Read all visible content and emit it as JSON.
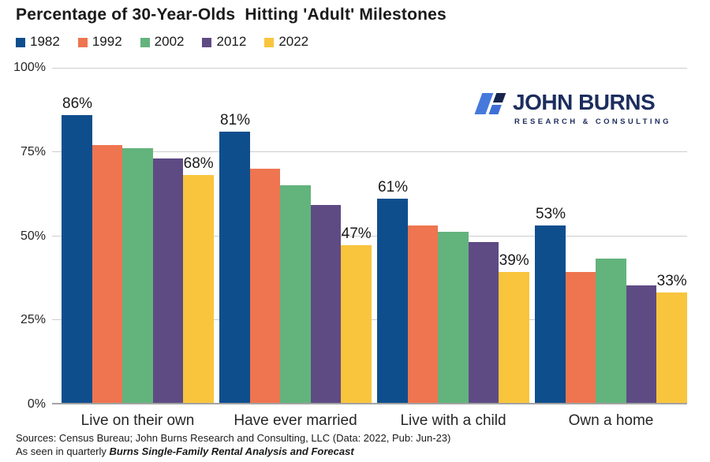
{
  "title": "Percentage of 30-Year-Olds  Hitting 'Adult' Milestones",
  "logo": {
    "name": "JOHN BURNS",
    "tagline": "RESEARCH & CONSULTING"
  },
  "chart_data": {
    "type": "bar",
    "title": "Percentage of 30-Year-Olds Hitting 'Adult' Milestones",
    "categories": [
      "Live on their own",
      "Have ever married",
      "Live with a child",
      "Own a home"
    ],
    "series": [
      {
        "name": "1982",
        "color": "#0f4e8d",
        "values": [
          86,
          81,
          61,
          53
        ],
        "labeled": true,
        "label_align": "left"
      },
      {
        "name": "1992",
        "color": "#ee7550",
        "values": [
          77,
          70,
          53,
          39
        ],
        "labeled": false
      },
      {
        "name": "2002",
        "color": "#63b37d",
        "values": [
          76,
          65,
          51,
          43
        ],
        "labeled": false
      },
      {
        "name": "2012",
        "color": "#5e4b84",
        "values": [
          73,
          59,
          48,
          35
        ],
        "labeled": false
      },
      {
        "name": "2022",
        "color": "#f8c53d",
        "values": [
          68,
          47,
          39,
          33
        ],
        "labeled": true,
        "label_align": "center"
      }
    ],
    "ylim": [
      0,
      100
    ],
    "y_ticks": [
      "100%",
      "75%",
      "50%",
      "25%",
      "0%"
    ],
    "grid": "horizontal",
    "legend_position": "top-left",
    "data_label_format": "{value}%",
    "gridline_color": "#cdcdcd",
    "baseline_color": "#a3a3a3"
  },
  "footer": {
    "line1": "Sources: Census Bureau; John Burns Research and Consulting, LLC (Data: 2022, Pub: Jun-23)",
    "line2_prefix": "As seen in quarterly ",
    "line2_emphasis": "Burns Single-Family Rental Analysis and Forecast"
  }
}
